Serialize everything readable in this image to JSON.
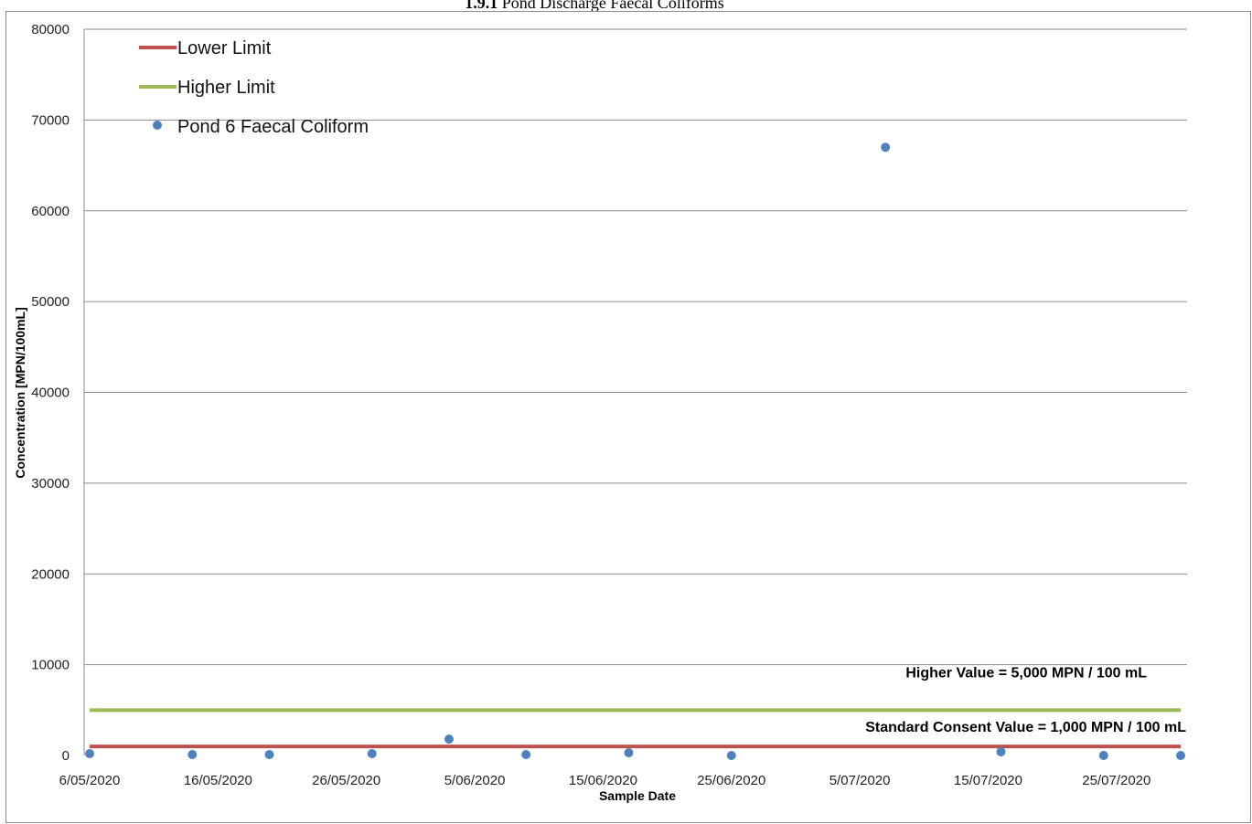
{
  "page": {
    "title_bold": "1.9.1",
    "title_rest": " Pond Discharge Faecal Coliforms"
  },
  "chart_data": {
    "type": "scatter",
    "xlabel": "Sample Date",
    "ylabel": "Concentration [MPN/100mL]",
    "xlim": [
      "2020-05-06",
      "2020-07-30"
    ],
    "ylim": [
      0,
      80000
    ],
    "y_ticks": [
      0,
      10000,
      20000,
      30000,
      40000,
      50000,
      60000,
      70000,
      80000
    ],
    "y_tick_labels": [
      "0",
      "10000",
      "20000",
      "30000",
      "40000",
      "50000",
      "60000",
      "70000",
      "80000"
    ],
    "x_ticks": [
      "2020-05-06",
      "2020-05-16",
      "2020-05-26",
      "2020-06-05",
      "2020-06-15",
      "2020-06-25",
      "2020-07-05",
      "2020-07-15",
      "2020-07-25"
    ],
    "x_tick_labels": [
      "6/05/2020",
      "16/05/2020",
      "26/05/2020",
      "5/06/2020",
      "15/06/2020",
      "25/06/2020",
      "5/07/2020",
      "15/07/2020",
      "25/07/2020"
    ],
    "grid": "horizontal",
    "legend_position": "top-left",
    "series": [
      {
        "name": "Lower Limit",
        "kind": "line",
        "color": "#c0504d",
        "points": [
          {
            "x": "2020-05-06",
            "y": 1000
          },
          {
            "x": "2020-07-30",
            "y": 1000
          }
        ]
      },
      {
        "name": "Higher Limit",
        "kind": "line",
        "color": "#9bbb59",
        "points": [
          {
            "x": "2020-05-06",
            "y": 5000
          },
          {
            "x": "2020-07-30",
            "y": 5000
          }
        ]
      },
      {
        "name": "Pond 6 Faecal Coliform",
        "kind": "scatter",
        "color": "#4f81bd",
        "points": [
          {
            "x": "2020-05-06",
            "y": 200
          },
          {
            "x": "2020-05-14",
            "y": 100
          },
          {
            "x": "2020-05-20",
            "y": 100
          },
          {
            "x": "2020-05-28",
            "y": 200
          },
          {
            "x": "2020-06-03",
            "y": 1800
          },
          {
            "x": "2020-06-09",
            "y": 100
          },
          {
            "x": "2020-06-17",
            "y": 300
          },
          {
            "x": "2020-06-25",
            "y": 0
          },
          {
            "x": "2020-07-07",
            "y": 67000
          },
          {
            "x": "2020-07-16",
            "y": 400
          },
          {
            "x": "2020-07-24",
            "y": 0
          },
          {
            "x": "2020-07-30",
            "y": 0
          }
        ]
      }
    ],
    "annotations": [
      {
        "text": "Higher Value = 5,000 MPN / 100 mL",
        "anchor_y": 9200
      },
      {
        "text": "Standard Consent Value = 1,000 MPN / 100 mL",
        "anchor_y": 3200
      }
    ]
  }
}
